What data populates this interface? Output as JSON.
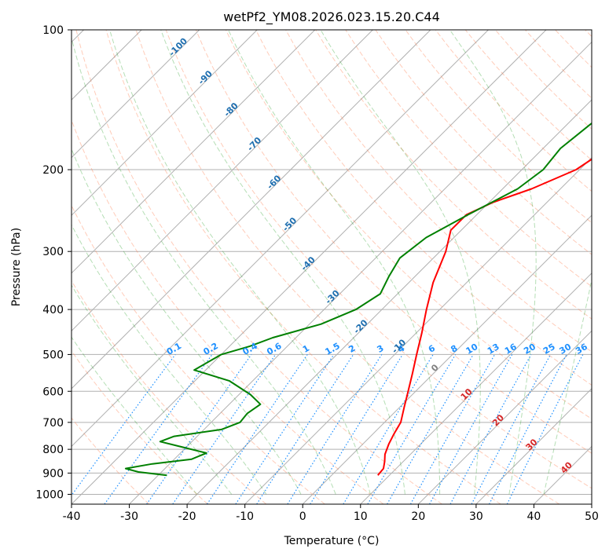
{
  "chart_data": {
    "type": "line",
    "title": "wetPf2_YM08.2026.023.15.20.C44",
    "xlabel": "Temperature (°C)",
    "ylabel": "Pressure (hPa)",
    "xlim": [
      -40,
      50
    ],
    "ylim": [
      1050,
      100
    ],
    "y_scale": "log",
    "x_ticks": [
      -40,
      -30,
      -20,
      -10,
      0,
      10,
      20,
      30,
      40,
      50
    ],
    "y_ticks": [
      100,
      200,
      300,
      400,
      500,
      600,
      700,
      800,
      900,
      1000
    ],
    "grid": true,
    "series": [
      {
        "role": "temperature",
        "color": "#ff0000",
        "points": [
          {
            "p": 910,
            "t": 8.0
          },
          {
            "p": 880,
            "t": 7.8
          },
          {
            "p": 850,
            "t": 6.8
          },
          {
            "p": 820,
            "t": 5.6
          },
          {
            "p": 780,
            "t": 4.5
          },
          {
            "p": 740,
            "t": 3.6
          },
          {
            "p": 700,
            "t": 2.8
          },
          {
            "p": 650,
            "t": 0.8
          },
          {
            "p": 600,
            "t": -1.3
          },
          {
            "p": 550,
            "t": -3.6
          },
          {
            "p": 500,
            "t": -6.2
          },
          {
            "p": 450,
            "t": -9.0
          },
          {
            "p": 400,
            "t": -12.3
          },
          {
            "p": 350,
            "t": -15.8
          },
          {
            "p": 300,
            "t": -19.0
          },
          {
            "p": 270,
            "t": -21.8
          },
          {
            "p": 250,
            "t": -21.8
          },
          {
            "p": 235,
            "t": -19.3
          },
          {
            "p": 220,
            "t": -15.0
          },
          {
            "p": 200,
            "t": -10.6
          },
          {
            "p": 180,
            "t": -8.8
          },
          {
            "p": 160,
            "t": -7.2
          },
          {
            "p": 140,
            "t": -6.4
          },
          {
            "p": 120,
            "t": -7.2
          },
          {
            "p": 105,
            "t": -9.2
          },
          {
            "p": 100,
            "t": -10.6
          }
        ]
      },
      {
        "role": "dewpoint",
        "color": "#008000",
        "points": [
          {
            "p": 910,
            "t": -28.5
          },
          {
            "p": 895,
            "t": -34.0
          },
          {
            "p": 880,
            "t": -36.8
          },
          {
            "p": 860,
            "t": -33.0
          },
          {
            "p": 840,
            "t": -27.0
          },
          {
            "p": 815,
            "t": -25.5
          },
          {
            "p": 790,
            "t": -31.0
          },
          {
            "p": 770,
            "t": -35.5
          },
          {
            "p": 750,
            "t": -34.0
          },
          {
            "p": 725,
            "t": -27.0
          },
          {
            "p": 700,
            "t": -25.0
          },
          {
            "p": 670,
            "t": -25.3
          },
          {
            "p": 640,
            "t": -24.6
          },
          {
            "p": 610,
            "t": -28.0
          },
          {
            "p": 570,
            "t": -34.0
          },
          {
            "p": 540,
            "t": -42.0
          },
          {
            "p": 500,
            "t": -40.0
          },
          {
            "p": 480,
            "t": -36.5
          },
          {
            "p": 460,
            "t": -34.0
          },
          {
            "p": 430,
            "t": -28.0
          },
          {
            "p": 400,
            "t": -24.5
          },
          {
            "p": 370,
            "t": -23.0
          },
          {
            "p": 340,
            "t": -24.5
          },
          {
            "p": 310,
            "t": -25.8
          },
          {
            "p": 280,
            "t": -24.8
          },
          {
            "p": 250,
            "t": -21.5
          },
          {
            "p": 220,
            "t": -17.4
          },
          {
            "p": 200,
            "t": -16.3
          },
          {
            "p": 180,
            "t": -17.0
          },
          {
            "p": 160,
            "t": -16.0
          },
          {
            "p": 140,
            "t": -14.5
          },
          {
            "p": 120,
            "t": -11.5
          },
          {
            "p": 105,
            "t": -7.8
          },
          {
            "p": 100,
            "t": -6.3
          }
        ]
      }
    ],
    "isotherm_labels": [
      "-100",
      "-90",
      "-80",
      "-70",
      "-60",
      "-50",
      "-40",
      "-30",
      "-20",
      "-10"
    ],
    "mixing_ratio_labels": [
      "0.1",
      "0.2",
      "0.4",
      "0.6",
      "1",
      "1.5",
      "2",
      "3",
      "4",
      "6",
      "8",
      "10",
      "13",
      "16",
      "20",
      "25",
      "30",
      "36"
    ],
    "isotherm_label_0": "0",
    "isotherm_labels_warm": [
      "10",
      "20",
      "30",
      "40"
    ],
    "colors": {
      "temperature": "#ff0000",
      "dewpoint": "#008000",
      "isotherm_cold": "#1f6fb0",
      "isotherm_zero": "#808080",
      "isotherm_warm": "#d62728",
      "mixing_ratio": "#1e90ff",
      "dry_adiabat": "#ff7f50",
      "moist_adiabat": "#2ca02c",
      "grid": "#b0b0b0"
    }
  }
}
